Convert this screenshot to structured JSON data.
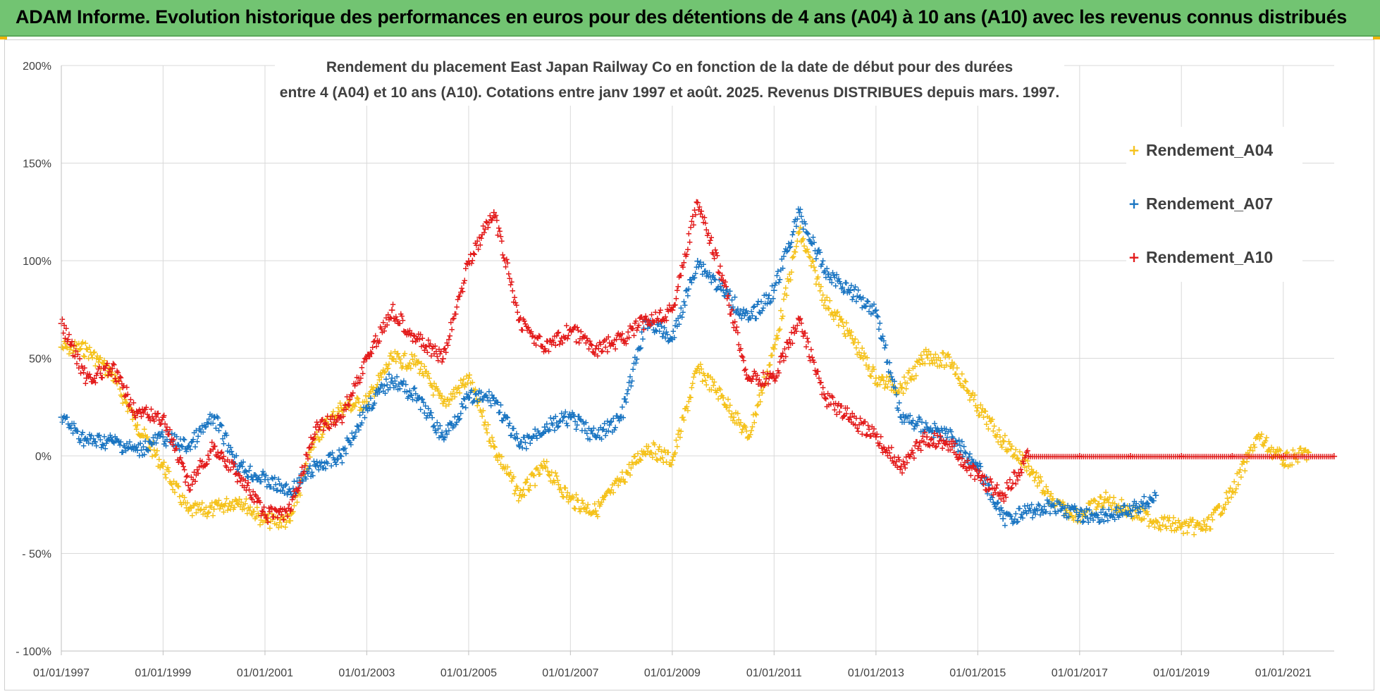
{
  "banner": {
    "title": "ADAM Informe. Evolution historique des performances en euros pour des détentions de 4 ans (A04) à 10 ans (A10) avec les revenus connus distribués"
  },
  "chart_data": {
    "type": "scatter",
    "title_lines": [
      "Rendement du placement East Japan Railway Co en fonction de la date de début pour des durées",
      "entre 4 (A04) et 10 ans (A10). Cotations entre janv 1997 et août. 2025. Revenus DISTRIBUES depuis mars. 1997."
    ],
    "xlabel": "",
    "ylabel": "",
    "x_range": [
      "1997-01-01",
      "2022-01-01"
    ],
    "ylim": [
      -100,
      200
    ],
    "y_ticks": [
      -100,
      -50,
      0,
      50,
      100,
      150,
      200
    ],
    "y_tick_labels": [
      "- 100%",
      "- 50%",
      "0%",
      "50%",
      "100%",
      "150%",
      "200%"
    ],
    "x_tick_labels": [
      "01/01/1997",
      "01/01/1999",
      "01/01/2001",
      "01/01/2003",
      "01/01/2005",
      "01/01/2007",
      "01/01/2009",
      "01/01/2011",
      "01/01/2013",
      "01/01/2015",
      "01/01/2017",
      "01/01/2019",
      "01/01/2021"
    ],
    "grid": true,
    "legend_position": "top-right",
    "series": [
      {
        "name": "Rendement_A04",
        "color": "#f5c21b",
        "points": [
          [
            "1997-01-01",
            56
          ],
          [
            "1997-07-01",
            55
          ],
          [
            "1998-01-01",
            42
          ],
          [
            "1998-07-01",
            16
          ],
          [
            "1999-01-01",
            -5
          ],
          [
            "1999-07-01",
            -28
          ],
          [
            "2000-01-01",
            -27
          ],
          [
            "2000-07-01",
            -22
          ],
          [
            "2001-01-01",
            -33
          ],
          [
            "2001-07-01",
            -33
          ],
          [
            "2002-01-01",
            10
          ],
          [
            "2002-07-01",
            25
          ],
          [
            "2003-01-01",
            28
          ],
          [
            "2003-07-01",
            50
          ],
          [
            "2004-01-01",
            48
          ],
          [
            "2004-07-01",
            27
          ],
          [
            "2005-01-01",
            40
          ],
          [
            "2005-07-01",
            5
          ],
          [
            "2006-01-01",
            -20
          ],
          [
            "2006-07-01",
            -5
          ],
          [
            "2007-01-01",
            -22
          ],
          [
            "2007-07-01",
            -28
          ],
          [
            "2008-01-01",
            -12
          ],
          [
            "2008-07-01",
            5
          ],
          [
            "2009-01-01",
            -2
          ],
          [
            "2009-07-01",
            45
          ],
          [
            "2010-01-01",
            30
          ],
          [
            "2010-07-01",
            10
          ],
          [
            "2011-01-01",
            55
          ],
          [
            "2011-07-01",
            115
          ],
          [
            "2012-01-01",
            80
          ],
          [
            "2012-07-01",
            62
          ],
          [
            "2013-01-01",
            40
          ],
          [
            "2013-07-01",
            35
          ],
          [
            "2014-01-01",
            52
          ],
          [
            "2014-07-01",
            48
          ],
          [
            "2015-01-01",
            25
          ],
          [
            "2015-07-01",
            8
          ],
          [
            "2016-01-01",
            -5
          ],
          [
            "2016-07-01",
            -25
          ],
          [
            "2017-01-01",
            -30
          ],
          [
            "2017-07-01",
            -22
          ],
          [
            "2018-01-01",
            -28
          ],
          [
            "2018-07-01",
            -33
          ],
          [
            "2019-01-01",
            -36
          ],
          [
            "2019-07-01",
            -36
          ],
          [
            "2020-01-01",
            -18
          ],
          [
            "2020-07-01",
            10
          ],
          [
            "2021-01-01",
            -2
          ],
          [
            "2021-07-01",
            2
          ]
        ]
      },
      {
        "name": "Rendement_A07",
        "color": "#1a75c2",
        "points": [
          [
            "1997-01-01",
            20
          ],
          [
            "1997-07-01",
            8
          ],
          [
            "1998-01-01",
            8
          ],
          [
            "1998-07-01",
            3
          ],
          [
            "1999-01-01",
            10
          ],
          [
            "1999-07-01",
            5
          ],
          [
            "2000-01-01",
            20
          ],
          [
            "2000-07-01",
            -5
          ],
          [
            "2001-01-01",
            -12
          ],
          [
            "2001-07-01",
            -18
          ],
          [
            "2002-01-01",
            -5
          ],
          [
            "2002-07-01",
            0
          ],
          [
            "2003-01-01",
            25
          ],
          [
            "2003-07-01",
            40
          ],
          [
            "2004-01-01",
            30
          ],
          [
            "2004-07-01",
            10
          ],
          [
            "2005-01-01",
            30
          ],
          [
            "2005-07-01",
            30
          ],
          [
            "2006-01-01",
            5
          ],
          [
            "2006-07-01",
            15
          ],
          [
            "2007-01-01",
            20
          ],
          [
            "2007-07-01",
            10
          ],
          [
            "2008-01-01",
            20
          ],
          [
            "2008-07-01",
            70
          ],
          [
            "2009-01-01",
            60
          ],
          [
            "2009-07-01",
            100
          ],
          [
            "2010-01-01",
            85
          ],
          [
            "2010-07-01",
            70
          ],
          [
            "2011-01-01",
            85
          ],
          [
            "2011-07-01",
            125
          ],
          [
            "2012-01-01",
            95
          ],
          [
            "2012-07-01",
            85
          ],
          [
            "2013-01-01",
            75
          ],
          [
            "2013-07-01",
            20
          ],
          [
            "2014-01-01",
            15
          ],
          [
            "2014-07-01",
            10
          ],
          [
            "2015-01-01",
            -5
          ],
          [
            "2015-07-01",
            -32
          ],
          [
            "2016-01-01",
            -28
          ],
          [
            "2016-07-01",
            -25
          ],
          [
            "2017-01-01",
            -30
          ],
          [
            "2017-07-01",
            -30
          ],
          [
            "2018-01-01",
            -28
          ],
          [
            "2018-07-01",
            -20
          ]
        ]
      },
      {
        "name": "Rendement_A10",
        "color": "#e31b1b",
        "points": [
          [
            "1997-01-01",
            68
          ],
          [
            "1997-07-01",
            40
          ],
          [
            "1998-01-01",
            45
          ],
          [
            "1998-07-01",
            22
          ],
          [
            "1999-01-01",
            20
          ],
          [
            "1999-07-01",
            -15
          ],
          [
            "2000-01-01",
            5
          ],
          [
            "2000-07-01",
            -10
          ],
          [
            "2001-01-01",
            -30
          ],
          [
            "2001-07-01",
            -28
          ],
          [
            "2002-01-01",
            15
          ],
          [
            "2002-07-01",
            20
          ],
          [
            "2003-01-01",
            50
          ],
          [
            "2003-07-01",
            75
          ],
          [
            "2004-01-01",
            60
          ],
          [
            "2004-07-01",
            50
          ],
          [
            "2005-01-01",
            100
          ],
          [
            "2005-07-01",
            125
          ],
          [
            "2006-01-01",
            70
          ],
          [
            "2006-07-01",
            55
          ],
          [
            "2007-01-01",
            65
          ],
          [
            "2007-07-01",
            55
          ],
          [
            "2008-01-01",
            60
          ],
          [
            "2008-07-01",
            70
          ],
          [
            "2009-01-01",
            75
          ],
          [
            "2009-07-01",
            130
          ],
          [
            "2010-01-01",
            90
          ],
          [
            "2010-07-01",
            40
          ],
          [
            "2011-01-01",
            40
          ],
          [
            "2011-07-01",
            70
          ],
          [
            "2012-01-01",
            30
          ],
          [
            "2012-07-01",
            20
          ],
          [
            "2013-01-01",
            10
          ],
          [
            "2013-07-01",
            -5
          ],
          [
            "2014-01-01",
            10
          ],
          [
            "2014-07-01",
            5
          ],
          [
            "2015-01-01",
            -10
          ],
          [
            "2015-07-01",
            -20
          ],
          [
            "2016-01-01",
            0
          ],
          [
            "2017-01-01",
            0
          ],
          [
            "2018-01-01",
            0
          ],
          [
            "2019-01-01",
            0
          ],
          [
            "2020-01-01",
            0
          ],
          [
            "2021-01-01",
            0
          ],
          [
            "2021-12-31",
            0
          ]
        ]
      }
    ]
  }
}
